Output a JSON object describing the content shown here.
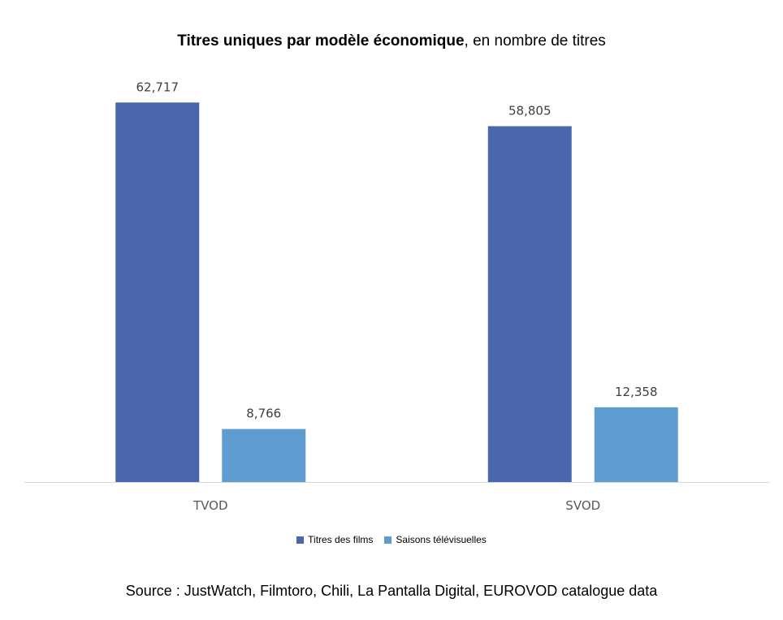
{
  "chart_data": {
    "type": "bar",
    "title": "Titres uniques par modèle économique",
    "subtitle": ", en nombre de titres",
    "categories": [
      "TVOD",
      "SVOD"
    ],
    "series": [
      {
        "name": "Titres des films",
        "values": [
          62717,
          58805
        ],
        "labels": [
          "62,717",
          "58,805"
        ],
        "color": "#4a67ae"
      },
      {
        "name": "Saisons télévisuelles",
        "values": [
          8766,
          12358
        ],
        "labels": [
          "8,766",
          "12,358"
        ],
        "color": "#5f9dd1"
      }
    ],
    "ylim": [
      0,
      70000
    ],
    "grid": false,
    "legend": "bottom",
    "source": "Source : JustWatch, Filmtoro, Chili, La Pantalla Digital, EUROVOD catalogue data"
  }
}
